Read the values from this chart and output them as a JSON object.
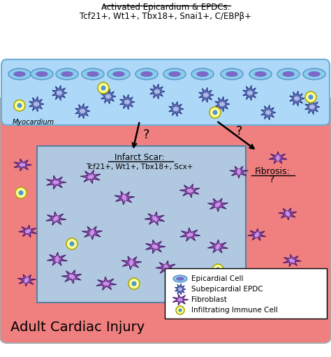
{
  "title_line1": "Activated Epicardium & EPDCs:",
  "title_line2": "Tcf21+, Wt1+, Tbx18+, Snai1+, C/EBPβ+",
  "myocardium_label": "Myocardium",
  "infarct_title": "Infarct Scar:",
  "infarct_genes": "Tcf21+, Wt1+, Tbx18+, Scx+",
  "bottom_title": "Adult Cardiac Injury",
  "legend_items": [
    "Epicardial Cell",
    "Subepicardial EPDC",
    "Fibroblast",
    "Infiltrating Immune Cell"
  ],
  "bg_color": "#ffffff",
  "epicardium_color": "#add8f7",
  "myocardium_color": "#f08080",
  "infarct_box_color": "#b0c8e0",
  "epicardial_cell_fill": "#87ceeb",
  "epicardial_cell_edge": "#5b8fc9",
  "epdc_fill": "#6a7fc1",
  "epdc_edge": "#2c3a8a",
  "fibroblast_fill": "#9b59b6",
  "fibroblast_edge": "#4a1a6e",
  "immune_fill": "#ffff99",
  "immune_edge": "#aaaa00"
}
